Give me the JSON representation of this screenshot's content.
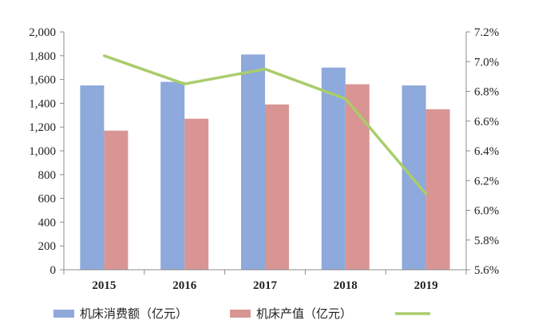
{
  "chart_data": {
    "type": "bar",
    "categories": [
      "2015",
      "2016",
      "2017",
      "2018",
      "2019"
    ],
    "series": [
      {
        "name": "机床消费额（亿元）",
        "kind": "bar",
        "axis": "left",
        "color": "#8ea9db",
        "values": [
          1550,
          1580,
          1810,
          1700,
          1550
        ]
      },
      {
        "name": "机床产值（亿元）",
        "kind": "bar",
        "axis": "left",
        "color": "#d99594",
        "values": [
          1170,
          1270,
          1390,
          1560,
          1350
        ]
      },
      {
        "name": "",
        "kind": "line",
        "axis": "right",
        "color": "#a9cd6b",
        "values": [
          7.04,
          6.85,
          6.95,
          6.75,
          6.11
        ]
      }
    ],
    "y_left": {
      "min": 0,
      "max": 2000,
      "step": 200,
      "tick_labels": [
        "0",
        "200",
        "400",
        "600",
        "800",
        "1,000",
        "1,200",
        "1,400",
        "1,600",
        "1,800",
        "2,000"
      ]
    },
    "y_right": {
      "min": 5.6,
      "max": 7.2,
      "step": 0.2,
      "tick_labels": [
        "5.6%",
        "5.8%",
        "6.0%",
        "6.2%",
        "6.4%",
        "6.6%",
        "6.8%",
        "7.0%",
        "7.2%"
      ]
    },
    "grid": false,
    "legend": {
      "placement": "bottom"
    }
  }
}
